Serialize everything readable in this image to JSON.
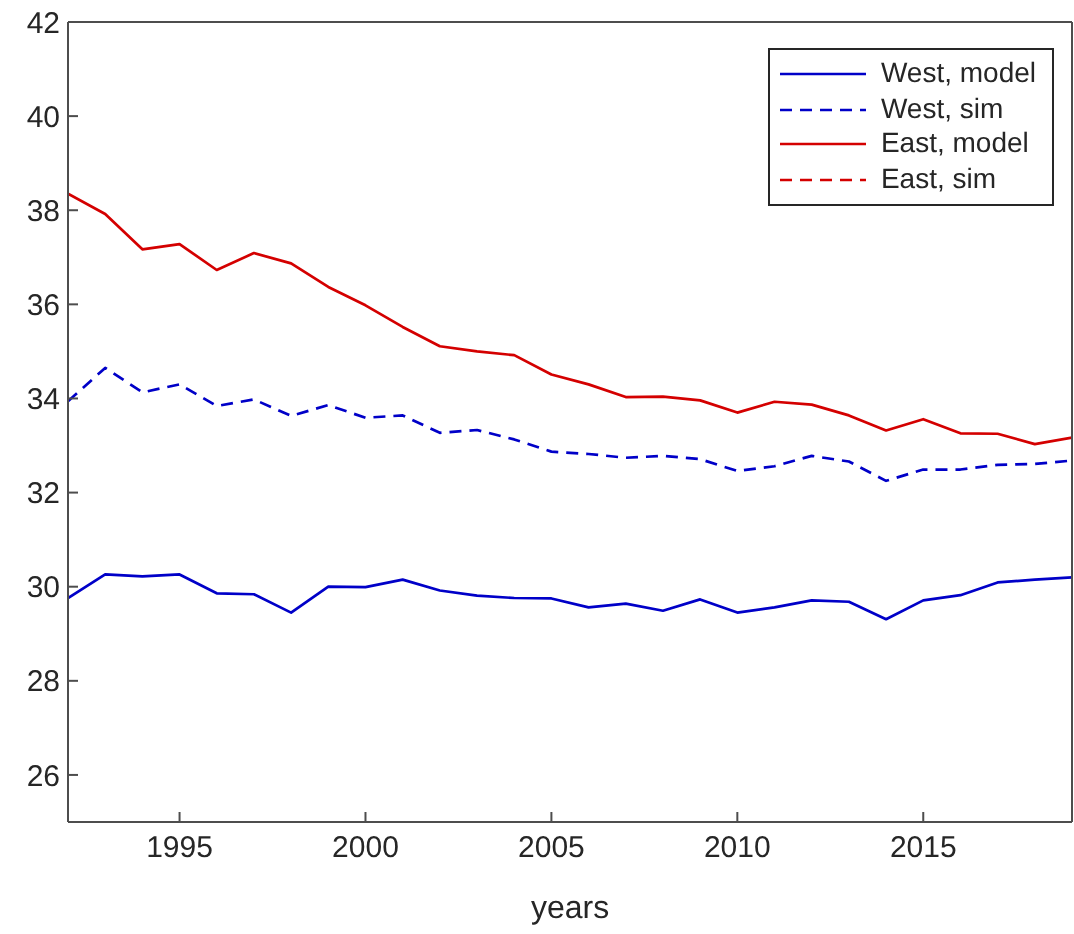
{
  "chart_data": {
    "type": "line",
    "xlabel": "years",
    "x": [
      1992,
      1993,
      1994,
      1995,
      1996,
      1997,
      1998,
      1999,
      2000,
      2001,
      2002,
      2003,
      2004,
      2005,
      2006,
      2007,
      2008,
      2009,
      2010,
      2011,
      2012,
      2013,
      2014,
      2015,
      2016,
      2017,
      2018,
      2019
    ],
    "series": [
      {
        "name": "West, model",
        "color": "#0000c8",
        "line_style": "solid",
        "values": [
          29.76,
          30.26,
          30.22,
          30.26,
          29.86,
          29.84,
          29.45,
          30.0,
          29.99,
          30.15,
          29.92,
          29.81,
          29.76,
          29.75,
          29.56,
          29.64,
          29.49,
          29.73,
          29.45,
          29.56,
          29.71,
          29.68,
          29.31,
          29.71,
          29.82,
          30.09,
          30.15,
          30.2
        ]
      },
      {
        "name": "West, sim",
        "color": "#0000c8",
        "line_style": "dashed",
        "values": [
          33.94,
          34.65,
          34.13,
          34.3,
          33.84,
          33.98,
          33.63,
          33.86,
          33.59,
          33.64,
          33.27,
          33.33,
          33.13,
          32.87,
          32.82,
          32.74,
          32.78,
          32.71,
          32.46,
          32.56,
          32.78,
          32.66,
          32.25,
          32.49,
          32.49,
          32.59,
          32.61,
          32.68
        ]
      },
      {
        "name": "East, model",
        "color": "#d40000",
        "line_style": "solid",
        "values": [
          38.35,
          37.92,
          37.17,
          37.28,
          36.73,
          37.09,
          36.87,
          36.37,
          35.98,
          35.52,
          35.11,
          35.0,
          34.92,
          34.51,
          34.3,
          34.03,
          34.04,
          33.96,
          33.7,
          33.93,
          33.87,
          33.64,
          33.32,
          33.56,
          33.26,
          33.25,
          33.03,
          33.17
        ]
      },
      {
        "name": "East, sim",
        "color": "#d40000",
        "line_style": "dashed",
        "values": [
          null,
          null,
          null,
          null,
          null,
          null,
          null,
          null,
          null,
          null,
          null,
          null,
          null,
          null,
          null,
          null,
          null,
          null,
          null,
          null,
          null,
          null,
          null,
          null,
          null,
          null,
          null,
          null
        ]
      }
    ],
    "xlim": [
      1992,
      2019
    ],
    "xticks": [
      1995,
      2000,
      2005,
      2010,
      2015
    ],
    "ylim": [
      25,
      42
    ],
    "yticks": [
      26,
      28,
      30,
      32,
      34,
      36,
      38,
      40,
      42
    ],
    "legend": "top right"
  }
}
